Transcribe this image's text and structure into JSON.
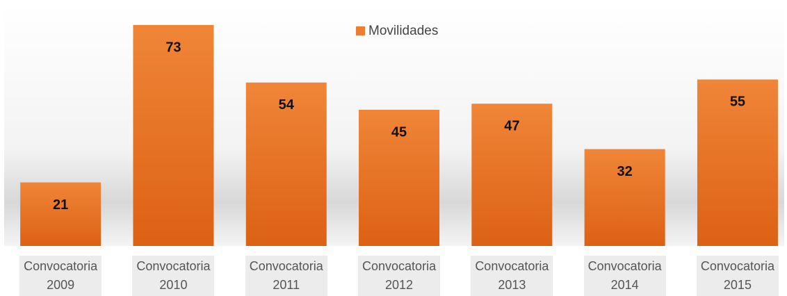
{
  "chart_data": {
    "type": "bar",
    "categories": [
      "Convocatoria 2009",
      "Convocatoria 2010",
      "Convocatoria 2011",
      "Convocatoria 2012",
      "Convocatoria 2013",
      "Convocatoria 2014",
      "Convocatoria 2015"
    ],
    "series": [
      {
        "name": "Movilidades",
        "color": "#ed7d31",
        "values": [
          21,
          73,
          54,
          45,
          47,
          32,
          55
        ]
      }
    ],
    "legend": "top"
  }
}
